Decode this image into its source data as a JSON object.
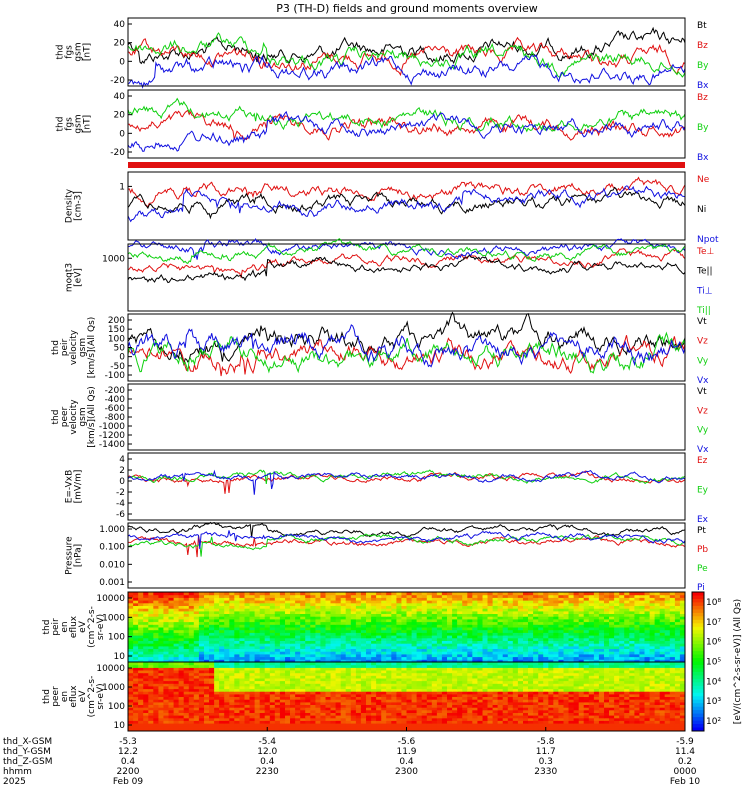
{
  "title": "P3 (TH-D) fields and ground moments overview",
  "colors": {
    "black": "#000000",
    "red": "#e01010",
    "green": "#10d010",
    "blue": "#1010e0"
  },
  "chart_data": [
    {
      "type": "line",
      "ylabel": [
        "thd",
        "fgs",
        "gsm",
        "[nT]"
      ],
      "yticks": [
        "40",
        "20",
        "0",
        "-20"
      ],
      "legend": [
        {
          "name": "Bt",
          "color": "black"
        },
        {
          "name": "Bz",
          "color": "red"
        },
        {
          "name": "By",
          "color": "green"
        },
        {
          "name": "Bx",
          "color": "blue"
        }
      ]
    },
    {
      "type": "line",
      "ylabel": [
        "thd",
        "fgs",
        "gsm",
        "[nT]"
      ],
      "yticks": [
        "40",
        "20",
        "0",
        "-20"
      ],
      "legend": [
        {
          "name": "Bz",
          "color": "red"
        },
        {
          "name": "By",
          "color": "green"
        },
        {
          "name": "Bx",
          "color": "blue"
        }
      ]
    },
    {
      "type": "line",
      "ylabel": [
        "Density",
        "[cm-3]"
      ],
      "yticks": [
        "1"
      ],
      "legend": [
        {
          "name": "Ne",
          "color": "red"
        },
        {
          "name": "Ni",
          "color": "black"
        },
        {
          "name": "Npot",
          "color": "blue"
        }
      ]
    },
    {
      "type": "line",
      "ylabel": [
        "moqt3",
        "[eV]"
      ],
      "yticks": [
        "1000"
      ],
      "legend": [
        {
          "name": "Te⊥",
          "color": "red"
        },
        {
          "name": "Te||",
          "color": "black"
        },
        {
          "name": "Ti⊥",
          "color": "blue"
        },
        {
          "name": "Ti||",
          "color": "green"
        }
      ]
    },
    {
      "type": "line",
      "ylabel": [
        "thd",
        "peir",
        "velocity",
        "gsm",
        "[km/s](All Qs)"
      ],
      "yticks": [
        "200",
        "150",
        "100",
        "50",
        "0",
        "-50",
        "-100"
      ],
      "legend": [
        {
          "name": "Vt",
          "color": "black"
        },
        {
          "name": "Vz",
          "color": "red"
        },
        {
          "name": "Vy",
          "color": "green"
        },
        {
          "name": "Vx",
          "color": "blue"
        }
      ]
    },
    {
      "type": "line",
      "ylabel": [
        "thd",
        "peer",
        "velocity",
        "gsm",
        "[km/s](All Qs)"
      ],
      "yticks": [
        "-200",
        "-400",
        "-600",
        "-800",
        "-1000",
        "-1200",
        "-1400"
      ],
      "legend": [
        {
          "name": "Vt",
          "color": "black"
        },
        {
          "name": "Vz",
          "color": "red"
        },
        {
          "name": "Vy",
          "color": "green"
        },
        {
          "name": "Vx",
          "color": "blue"
        }
      ]
    },
    {
      "type": "line",
      "ylabel": [
        "E=-VxB",
        "[mV/m]"
      ],
      "yticks": [
        "4",
        "2",
        "0",
        "-2",
        "-4",
        "-6"
      ],
      "legend": [
        {
          "name": "Ez",
          "color": "red"
        },
        {
          "name": "Ey",
          "color": "green"
        },
        {
          "name": "Ex",
          "color": "blue"
        }
      ]
    },
    {
      "type": "line",
      "ylabel": [
        "Pressure",
        "[nPa]"
      ],
      "yticks": [
        "1.000",
        "0.100",
        "0.010",
        "0.001"
      ],
      "legend": [
        {
          "name": "Pt",
          "color": "black"
        },
        {
          "name": "Pb",
          "color": "red"
        },
        {
          "name": "Pe",
          "color": "green"
        },
        {
          "name": "Pi",
          "color": "blue"
        }
      ]
    },
    {
      "type": "heatmap",
      "ylabel": [
        "thd",
        "peir",
        "en",
        "eflux",
        "eV",
        "(cm^2-s-",
        "sr-eV)"
      ],
      "yticks": [
        "10000",
        "1000",
        "100",
        "10"
      ]
    },
    {
      "type": "heatmap",
      "ylabel": [
        "thd",
        "peer",
        "en",
        "eflux",
        "eV",
        "(cm^2-s-",
        "sr-eV)"
      ],
      "yticks": [
        "10000",
        "1000",
        "100",
        "10"
      ]
    }
  ],
  "colorbar": {
    "label": "[eV/(cm^2-s-sr-eV)] (All Qs)",
    "ticks": [
      "10⁸",
      "10⁷",
      "10⁶",
      "10⁵",
      "10⁴",
      "10³",
      "10²"
    ]
  },
  "xaxis": {
    "rows": [
      {
        "label": "thd_X-GSM",
        "values": [
          "-5.3",
          "-5.4",
          "-5.6",
          "-5.8",
          "-5.9"
        ]
      },
      {
        "label": "thd_Y-GSM",
        "values": [
          "12.2",
          "12.0",
          "11.9",
          "11.7",
          "11.4"
        ]
      },
      {
        "label": "thd_Z-GSM",
        "values": [
          "0.4",
          "0.4",
          "0.4",
          "0.3",
          "0.2"
        ]
      },
      {
        "label": "hhmm",
        "values": [
          "2200",
          "2230",
          "2300",
          "2330",
          "0000"
        ]
      },
      {
        "label": "2025",
        "values": [
          "Feb 09",
          "",
          "",
          "",
          "Feb 10"
        ]
      }
    ]
  }
}
